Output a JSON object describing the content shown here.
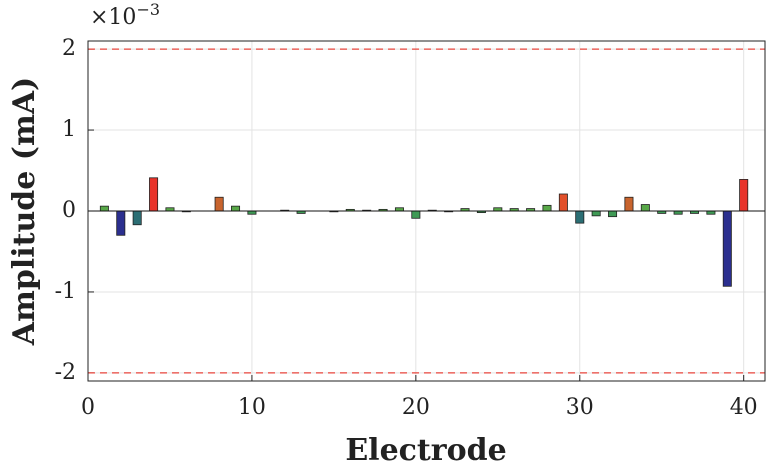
{
  "chart_data": {
    "type": "bar",
    "x_label": "Electrode",
    "y_label": "Amplitude (mA)",
    "y_multiplier": {
      "base": "×10",
      "exponent": "−3"
    },
    "x": [
      1,
      2,
      3,
      4,
      5,
      6,
      7,
      8,
      9,
      10,
      11,
      12,
      13,
      14,
      15,
      16,
      17,
      18,
      19,
      20,
      21,
      22,
      23,
      24,
      25,
      26,
      27,
      28,
      29,
      30,
      31,
      32,
      33,
      34,
      35,
      36,
      37,
      38,
      39,
      40
    ],
    "values": [
      0.06,
      -0.3,
      -0.17,
      0.41,
      0.04,
      -0.01,
      0,
      0.17,
      0.06,
      -0.04,
      0,
      0.01,
      -0.03,
      0,
      -0.01,
      0.02,
      0.01,
      0.02,
      0.04,
      -0.09,
      0.01,
      -0.01,
      0.03,
      -0.02,
      0.04,
      0.03,
      0.03,
      0.07,
      0.21,
      -0.15,
      -0.06,
      -0.07,
      0.17,
      0.08,
      -0.03,
      -0.04,
      -0.03,
      -0.04,
      -0.93,
      0.39
    ],
    "colors": [
      "#58a848",
      "#2b2f8f",
      "#2b6e74",
      "#e8332a",
      "#58a848",
      "#3f8a5a",
      "#58a848",
      "#c8642e",
      "#58a848",
      "#3f9a55",
      "#58a848",
      "#58a848",
      "#3f9a55",
      "#58a848",
      "#3f9a55",
      "#58a848",
      "#58a848",
      "#58a848",
      "#58a848",
      "#3f9a55",
      "#58a848",
      "#3f9a55",
      "#58a848",
      "#3f9a55",
      "#58a848",
      "#58a848",
      "#58a848",
      "#58a848",
      "#e2502a",
      "#2b6e74",
      "#3f9a55",
      "#3f9a55",
      "#c8642e",
      "#58a848",
      "#3f9a55",
      "#3f9a55",
      "#3f9a55",
      "#3f9a55",
      "#2b2f8f",
      "#e8332a"
    ],
    "hlines": [
      2,
      -2
    ],
    "hline_color": "#e8463c",
    "xlim": [
      0,
      41.3
    ],
    "xticks": [
      0,
      10,
      20,
      30,
      40
    ],
    "ylim": [
      -2.1,
      2.1
    ],
    "yticks": [
      -2,
      -1,
      0,
      1,
      2
    ],
    "grid": true
  }
}
